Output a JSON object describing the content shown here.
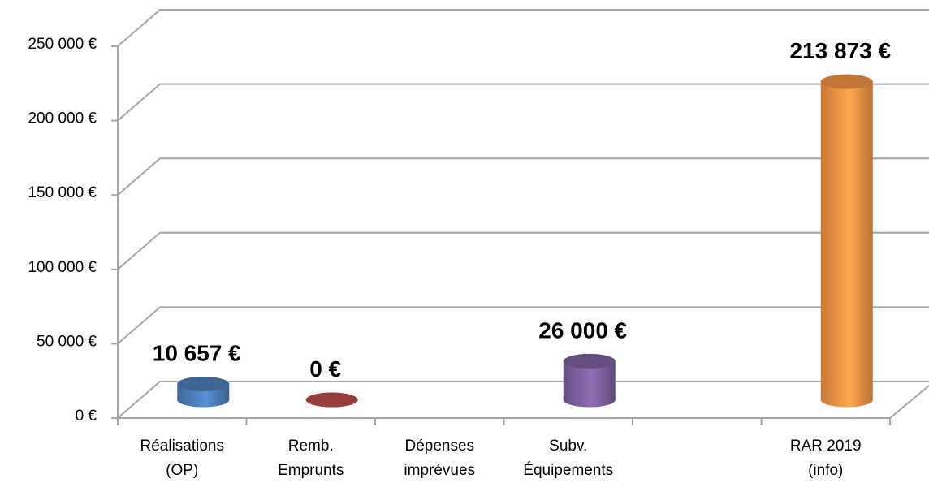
{
  "chart_data": {
    "type": "bar3d",
    "categories": [
      "Réalisations\n(OP)",
      "Remb.\nEmprunts",
      "Dépenses\nimprévues",
      "Subv.\nÉquipements",
      null,
      "RAR 2019\n(info)"
    ],
    "values": [
      10657,
      0,
      null,
      26000,
      null,
      213873
    ],
    "value_labels": [
      "10 657 €",
      "0 €",
      null,
      "26 000 €",
      null,
      "213 873 €"
    ],
    "colors": [
      "#4f81bd",
      "#c0504d",
      null,
      "#8064a2",
      null,
      "#f79646"
    ],
    "ylim": [
      0,
      250000
    ],
    "yticks": [
      {
        "value": 0,
        "label": "0 €"
      },
      {
        "value": 50000,
        "label": "50 000 €"
      },
      {
        "value": 100000,
        "label": "100 000 €"
      },
      {
        "value": 150000,
        "label": "150 000 €"
      },
      {
        "value": 200000,
        "label": "200 000 €"
      },
      {
        "value": 250000,
        "label": "250 000 €"
      }
    ],
    "grid": true
  }
}
